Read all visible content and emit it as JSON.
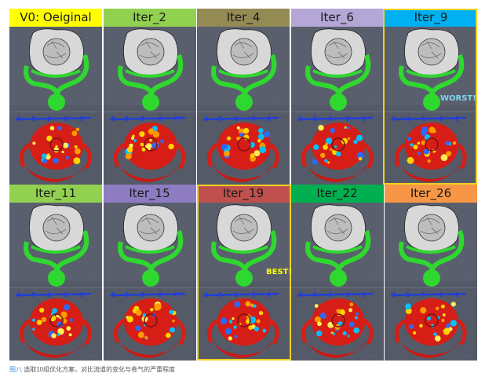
{
  "panels": [
    {
      "label": "V0: Oeiginal",
      "color": "#ffff00"
    },
    {
      "label": "Iter_2",
      "color": "#92d050"
    },
    {
      "label": "Iter_4",
      "color": "#948a54"
    },
    {
      "label": "Iter_6",
      "color": "#b4a7d6"
    },
    {
      "label": "Iter_9",
      "color": "#00b0f0"
    },
    {
      "label": "Iter_11",
      "color": "#92d050"
    },
    {
      "label": "Iter_15",
      "color": "#8e7cc3"
    },
    {
      "label": "Iter_19",
      "color": "#c0504d"
    },
    {
      "label": "Iter_22",
      "color": "#00b050"
    },
    {
      "label": "Iter_26",
      "color": "#f79646"
    }
  ],
  "annotations": {
    "worst": "WORST!",
    "best": "BEST!"
  },
  "caption": {
    "figure": "图八",
    "text": " 选取10组优化方案，对比流道的变化与卷气的严重程度"
  },
  "colors": {
    "panel_bg": "#555a68",
    "highlight_border": "#f2d020",
    "worst_text": "#7fd4f0",
    "best_text": "#ffff00"
  }
}
